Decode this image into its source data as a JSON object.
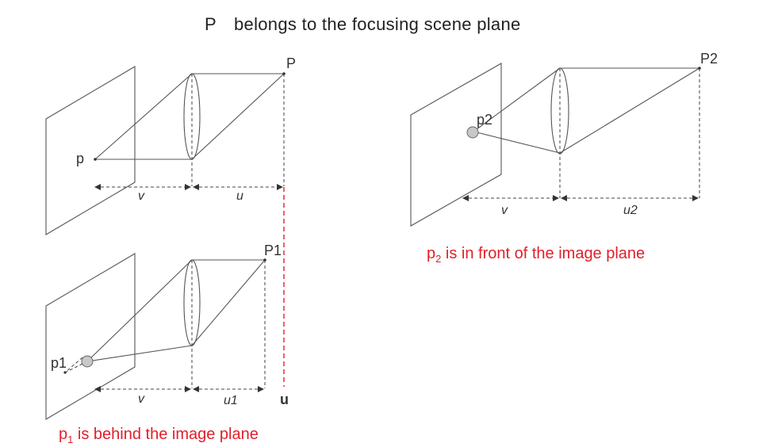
{
  "title_left": "P",
  "title_rest": "belongs to the focusing scene plane",
  "panel_top_left": {
    "scene_point": "P",
    "image_point": "p",
    "dist_v": "v",
    "dist_u": "u"
  },
  "panel_right": {
    "scene_point": "P2",
    "image_point": "p2",
    "dist_v": "v",
    "dist_u": "u2",
    "caption_prefix": "p",
    "caption_sub": "2",
    "caption_rest": " is in front of the image plane"
  },
  "panel_bottom_left": {
    "scene_point": "P1",
    "image_point": "p1",
    "dist_v": "v",
    "dist_u": "u1",
    "dist_u_ref": "u",
    "caption_prefix": "p",
    "caption_sub": "1",
    "caption_rest": " is behind the image plane"
  },
  "colors": {
    "accent_red": "#e0202a",
    "line": "#555555"
  }
}
